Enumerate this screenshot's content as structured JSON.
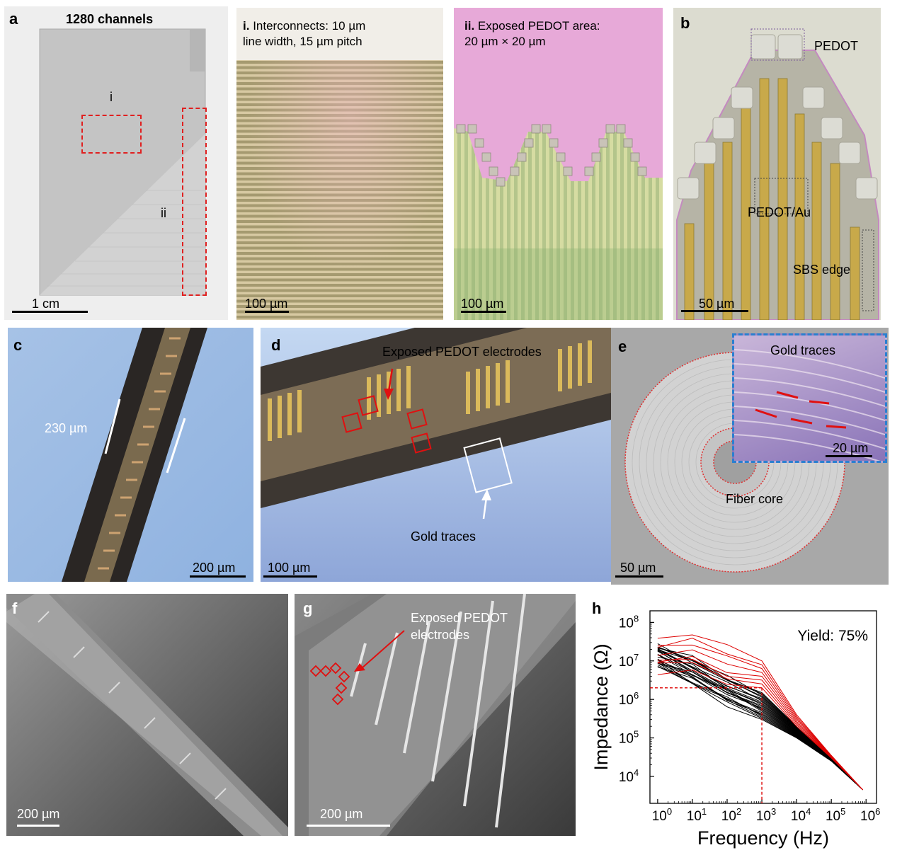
{
  "panels": {
    "a": {
      "letter": "a",
      "title": "1280 channels",
      "region_i": "i",
      "region_ii": "ii",
      "scale": "1 cm"
    },
    "a_i": {
      "title_prefix": "i.",
      "title_line1": "Interconnects: 10 µm",
      "title_line2": "line width, 15 µm pitch",
      "scale": "100 µm"
    },
    "a_ii": {
      "title_prefix": "ii.",
      "title_line1": "Exposed PEDOT area:",
      "title_line2": "20 µm × 20 µm",
      "scale": "100 µm"
    },
    "b": {
      "letter": "b",
      "label_pedot": "PEDOT",
      "label_pedot_au": "PEDOT/Au",
      "label_sbs": "SBS edge",
      "scale": "50 µm"
    },
    "c": {
      "letter": "c",
      "width_label": "230 µm",
      "scale": "200 µm"
    },
    "d": {
      "letter": "d",
      "label_electrodes": "Exposed PEDOT electrodes",
      "label_gold": "Gold traces",
      "scale": "100 µm"
    },
    "e": {
      "letter": "e",
      "label_gold": "Gold traces",
      "label_core": "Fiber core",
      "scale_inset": "20 µm",
      "scale": "50 µm"
    },
    "f": {
      "letter": "f",
      "scale": "200 µm"
    },
    "g": {
      "letter": "g",
      "label_line1": "Exposed PEDOT",
      "label_line2": "electrodes",
      "scale": "200 µm"
    },
    "h": {
      "letter": "h"
    }
  },
  "chart_data": {
    "type": "line",
    "title": "",
    "annotation": "Yield: 75%",
    "xlabel": "Frequency (Hz)",
    "ylabel": "Impedance (Ω)",
    "x_scale": "log",
    "y_scale": "log",
    "xlim": [
      0.6,
      2000000
    ],
    "ylim": [
      2000,
      200000000
    ],
    "x_ticks": [
      1,
      10,
      100,
      1000,
      10000,
      100000,
      1000000
    ],
    "x_tick_labels": [
      "10^0",
      "10^1",
      "10^2",
      "10^3",
      "10^4",
      "10^5",
      "10^6"
    ],
    "y_ticks": [
      10000,
      100000,
      1000000,
      10000000,
      100000000
    ],
    "y_tick_labels": [
      "10^4",
      "10^5",
      "10^6",
      "10^7",
      "10^8"
    ],
    "reference_lines": {
      "x": 1000,
      "y": 2000000,
      "color": "#dd0000"
    },
    "colors": {
      "passing": "#000000",
      "failing": "#dd0000"
    },
    "series_groups": [
      {
        "group": "passing",
        "count": 24,
        "x": [
          1,
          10,
          100,
          1000,
          10000,
          100000,
          800000
        ],
        "values_range": {
          "low": [
            8000000,
            2500000,
            800000,
            300000,
            100000,
            25000,
            4500
          ],
          "high": [
            25000000,
            12000000,
            4000000,
            1500000,
            200000,
            30000,
            4500
          ]
        }
      },
      {
        "group": "failing",
        "count": 8,
        "x": [
          1,
          10,
          100,
          1000,
          10000,
          100000,
          800000
        ],
        "values_range": {
          "low": [
            5000000,
            5000000,
            2000000,
            2000000,
            200000,
            30000,
            4500
          ],
          "high": [
            40000000,
            60000000,
            20000000,
            10000000,
            400000,
            35000,
            4500
          ]
        }
      }
    ]
  }
}
